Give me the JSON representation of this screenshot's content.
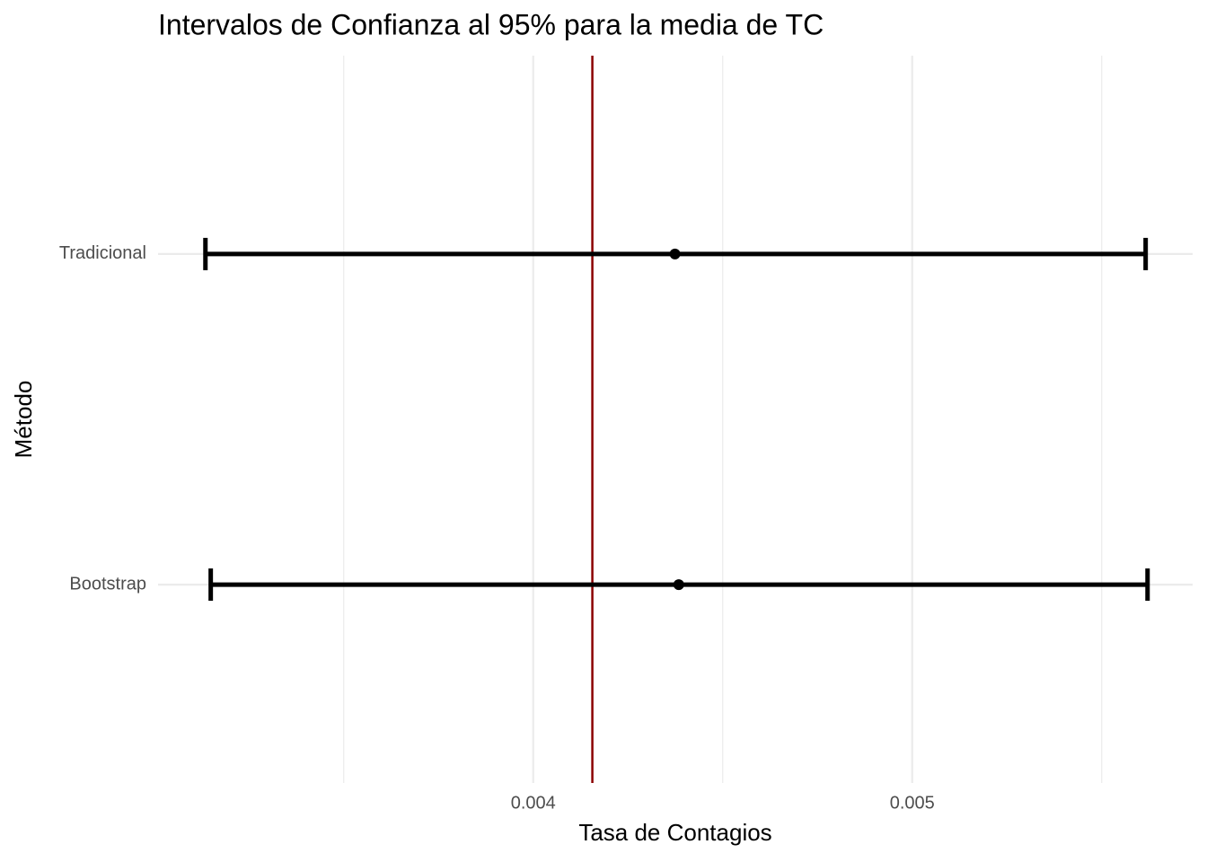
{
  "chart_data": {
    "type": "errorbar",
    "title": "Intervalos de Confianza al 95% para la media de TC",
    "xlabel": "Tasa de Contagios",
    "ylabel": "Método",
    "categories": [
      "Bootstrap",
      "Tradicional"
    ],
    "values": [
      0.004384,
      0.004374
    ],
    "lower": [
      0.003149,
      0.003135
    ],
    "upper": [
      0.005621,
      0.005616
    ],
    "color": "#000000",
    "reference_line": {
      "value": 0.004156,
      "color": "#8b0000"
    },
    "xlim": [
      0.00301,
      0.00574
    ],
    "xticks": [
      0.004,
      0.005
    ],
    "xminorticks": [
      0.0035,
      0.0045,
      0.0055
    ],
    "grid": true
  }
}
